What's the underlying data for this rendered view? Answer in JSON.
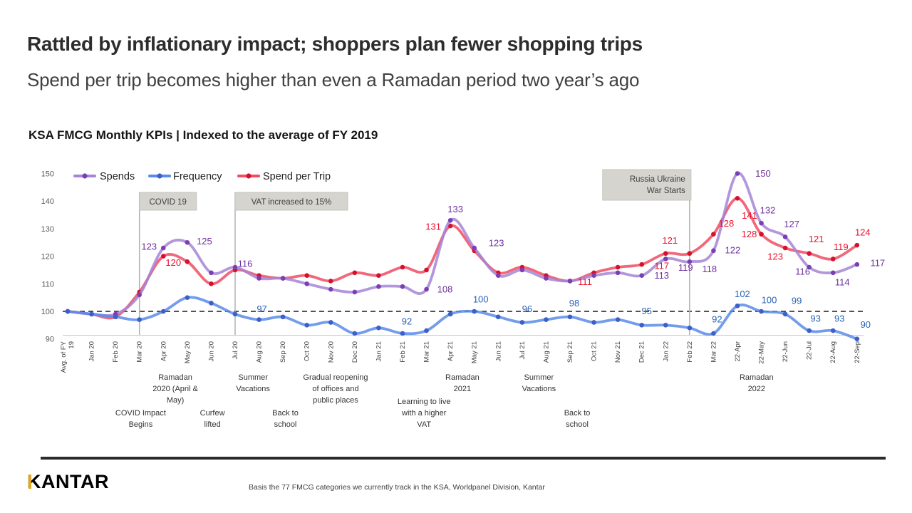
{
  "slide": {
    "title": "Rattled by inflationary impact; shoppers plan fewer shopping trips",
    "subtitle": "Spend per trip becomes higher than even a Ramadan period two year’s ago",
    "chart_heading": "KSA FMCG Monthly KPIs | Indexed to the average of FY 2019"
  },
  "footer": {
    "logo": "KANTAR",
    "note": "Basis the 77 FMCG categories we currently track in the KSA, Worldpanel Division, Kantar"
  },
  "colors": {
    "spends_line": "#A585D6",
    "spends_dot": "#7B3FB5",
    "spends_label": "#7030A0",
    "frequency_line": "#5A8BEA",
    "frequency_dot": "#3C5FC8",
    "frequency_label": "#2B62B8",
    "spend_per_trip_line": "#EF4E63",
    "spend_per_trip_dot": "#D5122D",
    "spend_per_trip_label": "#E8112D",
    "event_box_bg": "#D5D4CF",
    "event_box_border": "#C4C3BE",
    "event_text": "#3F3F3F",
    "event_line": "#B2B1AC",
    "axis_text": "#595959",
    "xlabel_text": "#404040",
    "note_text": "#333333",
    "reference_line": "#1a1a1a",
    "baseline": "#c9c9c9",
    "accent_gold": "#E3A81C",
    "footer_bar": "#2B2B2B"
  },
  "chart_data": {
    "type": "line",
    "title": "KSA FMCG Monthly KPIs | Indexed to the average of FY 2019",
    "ylim": [
      90,
      150
    ],
    "yticks": [
      90,
      100,
      110,
      120,
      130,
      140,
      150
    ],
    "reference_line": 100,
    "grid": false,
    "legend_position": "top-left",
    "categories": [
      "Avg. of FY\n19",
      "Jan 20",
      "Feb 20",
      "Mar 20",
      "Apr 20",
      "May 20",
      "Jun 20",
      "Jul 20",
      "Aug 20",
      "Sep 20",
      "Oct 20",
      "Nov 20",
      "Dec 20",
      "Jan 21",
      "Feb 21",
      "Mar 21",
      "Apr 21",
      "May 21",
      "Jun 21",
      "Jul 21",
      "Aug 21",
      "Sep 21",
      "Oct 21",
      "Nov 21",
      "Dec 21",
      "Jan 22",
      "Feb 22",
      "Mar 22",
      "22-Apr",
      "22-May",
      "22-Jun",
      "22-Jul",
      "22-Aug",
      "22-Sep"
    ],
    "series": [
      {
        "name": "Spends",
        "values": [
          100,
          99,
          99,
          106,
          123,
          125,
          114,
          116,
          112,
          112,
          110,
          108,
          107,
          109,
          109,
          108,
          133,
          123,
          113,
          115,
          112,
          111,
          113,
          114,
          113,
          119,
          118,
          122,
          150,
          132,
          127,
          116,
          114,
          117
        ],
        "labeled_points": [
          4,
          5,
          7,
          15,
          16,
          17,
          24,
          25,
          26,
          27,
          28,
          29,
          30,
          31,
          32,
          33
        ]
      },
      {
        "name": "Frequency",
        "values": [
          100,
          99,
          98,
          97,
          100,
          105,
          103,
          99,
          97,
          98,
          95,
          96,
          92,
          94,
          92,
          93,
          99,
          100,
          98,
          96,
          97,
          98,
          96,
          97,
          95,
          95,
          94,
          92,
          102,
          100,
          99,
          93,
          93,
          90
        ],
        "labeled_points": [
          8,
          14,
          17,
          19,
          21,
          24,
          27,
          28,
          29,
          30,
          31,
          32,
          33
        ]
      },
      {
        "name": "Spend per Trip",
        "values": [
          100,
          99,
          98,
          107,
          120,
          118,
          110,
          115,
          113,
          112,
          113,
          111,
          114,
          113,
          116,
          115,
          131,
          122,
          114,
          116,
          113,
          111,
          114,
          116,
          117,
          121,
          121,
          128,
          141,
          128,
          123,
          121,
          119,
          124
        ],
        "labeled_points": [
          4,
          16,
          21,
          24,
          25,
          27,
          28,
          29,
          30,
          31,
          32,
          33
        ]
      }
    ],
    "events": [
      {
        "lines": [
          "COVID 19"
        ],
        "index": 3,
        "align": "left"
      },
      {
        "lines": [
          "VAT increased to 15%"
        ],
        "index": 7,
        "align": "left"
      },
      {
        "lines": [
          "Russia Ukraine",
          "War Starts"
        ],
        "index": 26,
        "align": "right"
      }
    ],
    "timeline_notes": [
      {
        "row": 1,
        "center_index": 4.5,
        "lines": [
          "Ramadan",
          "2020 (April &",
          "May)"
        ]
      },
      {
        "row": 1,
        "center_index": 7.75,
        "lines": [
          "Summer",
          "Vacations"
        ]
      },
      {
        "row": 1,
        "center_index": 11.2,
        "lines": [
          "Gradual reopening",
          "of offices and",
          "public places"
        ]
      },
      {
        "row": 1,
        "center_index": 16.5,
        "lines": [
          "Ramadan",
          "2021"
        ]
      },
      {
        "row": 1,
        "center_index": 19.7,
        "lines": [
          "Summer",
          "Vacations"
        ]
      },
      {
        "row": 1,
        "center_index": 28.8,
        "lines": [
          "Ramadan",
          "2022"
        ]
      },
      {
        "row": 2,
        "center_index": 3.05,
        "lines": [
          "COVID Impact",
          "Begins"
        ]
      },
      {
        "row": 2,
        "center_index": 6.05,
        "lines": [
          "Curfew",
          "lifted"
        ]
      },
      {
        "row": 2,
        "center_index": 9.1,
        "lines": [
          "Back to",
          "school"
        ]
      },
      {
        "row": 2,
        "center_index": 14.9,
        "lines": [
          "Learning to live",
          "with a higher",
          "VAT"
        ]
      },
      {
        "row": 2,
        "center_index": 21.3,
        "lines": [
          "Back to",
          "school"
        ]
      }
    ]
  }
}
